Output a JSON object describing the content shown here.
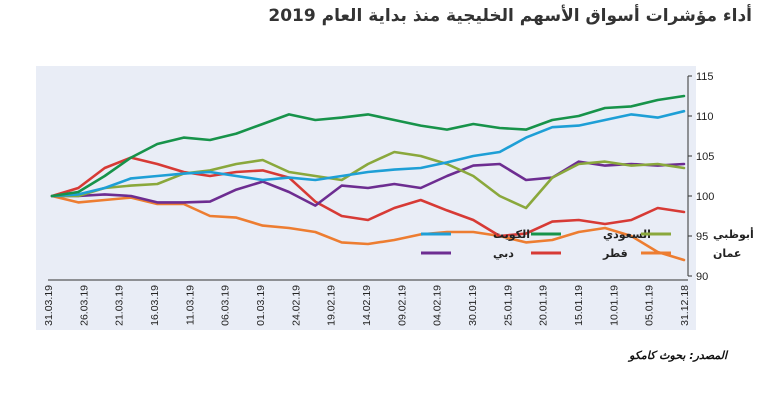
{
  "title": "أداء مؤشرات أسواق الأسهم الخليجية منذ بداية العام 2019",
  "source": "المصدر: بحوث كامكو",
  "chart_data": {
    "type": "line",
    "ylim": [
      90,
      115
    ],
    "yticks": [
      90,
      95,
      100,
      105,
      110,
      115
    ],
    "x_labels": [
      "31.03.19",
      "26.03.19",
      "21.03.19",
      "16.03.19",
      "11.03.19",
      "06.03.19",
      "01.03.19",
      "24.02.19",
      "19.02.19",
      "14.02.19",
      "09.02.19",
      "04.02.19",
      "30.01.19",
      "25.01.19",
      "20.01.19",
      "15.01.19",
      "10.01.19",
      "05.01.19",
      "31.12.18"
    ],
    "x_direction": "right-to-left",
    "grid": false,
    "legend_position": "bottom-right",
    "series": [
      {
        "name": "الكويت",
        "color": "#1e9fd6",
        "values": [
          100.0,
          100.2,
          101.0,
          102.2,
          102.5,
          102.8,
          103.0,
          102.5,
          102.0,
          102.3,
          102.0,
          102.5,
          103.0,
          103.3,
          103.5,
          104.2,
          105.0,
          105.5,
          107.3,
          108.6,
          108.8,
          109.5,
          110.2,
          109.8,
          110.6
        ]
      },
      {
        "name": "السعودي",
        "color": "#17934a",
        "values": [
          100.0,
          100.5,
          102.5,
          104.8,
          106.5,
          107.3,
          107.0,
          107.8,
          109.0,
          110.2,
          109.5,
          109.8,
          110.2,
          109.5,
          108.8,
          108.3,
          109.0,
          108.5,
          108.3,
          109.5,
          110.0,
          111.0,
          111.2,
          112.0,
          112.5
        ]
      },
      {
        "name": "أبوظبي",
        "color": "#8aa83c",
        "values": [
          100.0,
          100.0,
          101.0,
          101.3,
          101.5,
          102.8,
          103.2,
          104.0,
          104.5,
          103.0,
          102.5,
          102.0,
          104.0,
          105.5,
          105.0,
          104.0,
          102.5,
          100.0,
          98.5,
          102.3,
          104.0,
          104.3,
          103.8,
          104.0,
          103.5
        ]
      },
      {
        "name": "دبي",
        "color": "#6d2d91",
        "values": [
          100.0,
          100.0,
          100.2,
          100.0,
          99.2,
          99.2,
          99.3,
          100.8,
          101.8,
          100.5,
          98.8,
          101.3,
          101.0,
          101.5,
          101.0,
          102.5,
          103.8,
          104.0,
          102.0,
          102.3,
          104.3,
          103.8,
          104.0,
          103.8,
          104.0
        ]
      },
      {
        "name": "قطر",
        "color": "#d73a35",
        "values": [
          100.0,
          101.0,
          103.5,
          104.8,
          104.0,
          103.0,
          102.5,
          103.0,
          103.2,
          102.3,
          99.3,
          97.5,
          97.0,
          98.5,
          99.5,
          98.2,
          97.0,
          95.0,
          95.3,
          96.8,
          97.0,
          96.5,
          97.0,
          98.5,
          98.0
        ]
      },
      {
        "name": "عمان",
        "color": "#ed7d31",
        "values": [
          100.0,
          99.2,
          99.5,
          99.8,
          99.0,
          99.0,
          97.5,
          97.3,
          96.3,
          96.0,
          95.5,
          94.2,
          94.0,
          94.5,
          95.2,
          95.5,
          95.5,
          95.0,
          94.2,
          94.5,
          95.5,
          96.0,
          95.0,
          93.0,
          92.0
        ]
      }
    ]
  }
}
